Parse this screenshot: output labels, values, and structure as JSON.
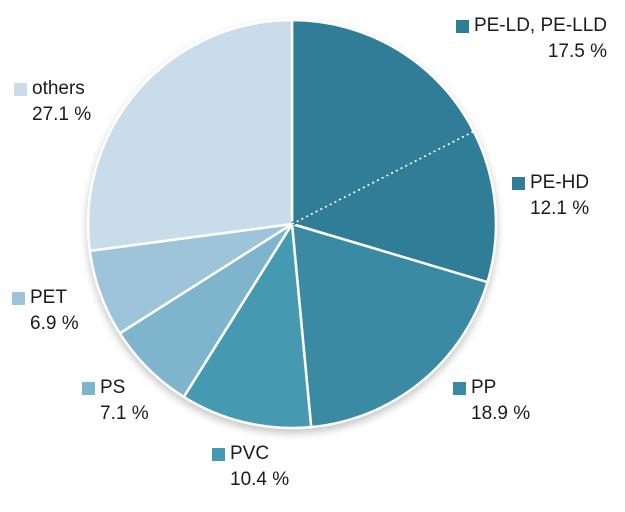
{
  "page": {
    "background": "#FFFFFF"
  },
  "chart_data": {
    "type": "pie",
    "title": "",
    "unit": "%",
    "start_angle": "top-clockwise",
    "legend_position": "around-pie",
    "separator_color": "#FFFFFF",
    "slices": [
      {
        "label": "PE-LD, PE-LLD",
        "value": 17.5,
        "display_value": "17.5 %",
        "color": "#2F7D97",
        "divider_after": "dotted"
      },
      {
        "label": "PE-HD",
        "value": 12.1,
        "display_value": "12.1 %",
        "color": "#2F7D97"
      },
      {
        "label": "PP",
        "value": 18.9,
        "display_value": "18.9 %",
        "color": "#3A8AA4"
      },
      {
        "label": "PVC",
        "value": 10.4,
        "display_value": "10.4 %",
        "color": "#459AB2"
      },
      {
        "label": "PS",
        "value": 7.1,
        "display_value": "7.1 %",
        "color": "#7EB5CC"
      },
      {
        "label": "PET",
        "value": 6.9,
        "display_value": "6.9 %",
        "color": "#9DC4D8"
      },
      {
        "label": "others",
        "value": 27.1,
        "display_value": "27.1 %",
        "color": "#C8DDE9"
      }
    ]
  }
}
